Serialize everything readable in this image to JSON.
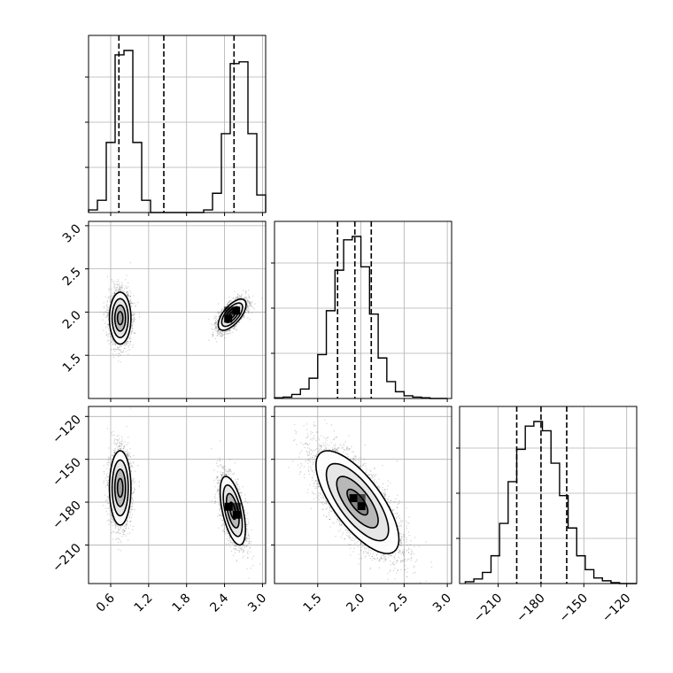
{
  "chart_data": {
    "type": "corner",
    "grid": true,
    "parameters": [
      {
        "range": [
          0.25,
          3.05
        ],
        "ticks": [
          0.6,
          1.2,
          1.8,
          2.4,
          3.0
        ],
        "tick_labels": [
          "0.6",
          "1.2",
          "1.8",
          "2.4",
          "3.0"
        ],
        "quantiles": [
          0.73,
          1.44,
          2.55
        ],
        "histogram": {
          "edges": [
            0.25,
            0.39,
            0.53,
            0.67,
            0.81,
            0.95,
            1.09,
            1.23,
            1.37,
            1.51,
            1.65,
            1.79,
            1.93,
            2.07,
            2.21,
            2.35,
            2.49,
            2.63,
            2.77,
            2.91,
            3.05
          ],
          "counts": [
            3,
            14,
            80,
            180,
            185,
            80,
            14,
            0,
            0,
            0,
            0,
            0,
            0,
            3,
            22,
            90,
            170,
            172,
            90,
            20
          ]
        }
      },
      {
        "range": [
          1.0,
          3.05
        ],
        "ticks": [
          1.5,
          2.0,
          2.5,
          3.0
        ],
        "tick_labels": [
          "1.5",
          "2.0",
          "2.5",
          "3.0"
        ],
        "quantiles": [
          1.73,
          1.93,
          2.12
        ],
        "histogram": {
          "edges": [
            1.0,
            1.1,
            1.2,
            1.3,
            1.4,
            1.5,
            1.6,
            1.7,
            1.8,
            1.9,
            2.0,
            2.1,
            2.2,
            2.3,
            2.4,
            2.5,
            2.6,
            2.7,
            2.8,
            2.9,
            3.0
          ],
          "counts": [
            1,
            2,
            6,
            14,
            30,
            65,
            130,
            190,
            235,
            240,
            195,
            125,
            60,
            25,
            10,
            4,
            2,
            1,
            0,
            0
          ]
        }
      },
      {
        "range": [
          -237,
          -113
        ],
        "ticks": [
          -210,
          -180,
          -150,
          -120
        ],
        "tick_labels": [
          "−210",
          "−180",
          "−150",
          "−120"
        ],
        "quantiles": [
          -197,
          -180,
          -162
        ],
        "histogram": {
          "edges": [
            -233,
            -227,
            -221,
            -215,
            -209,
            -203,
            -197,
            -191,
            -185,
            -179,
            -173,
            -167,
            -161,
            -155,
            -149,
            -143,
            -137,
            -131,
            -125,
            -119,
            -113
          ],
          "counts": [
            2,
            5,
            12,
            30,
            65,
            110,
            145,
            170,
            175,
            165,
            130,
            95,
            60,
            30,
            15,
            6,
            3,
            1,
            0,
            0
          ]
        }
      }
    ],
    "pairs": [
      {
        "x_param": 0,
        "y_param": 1,
        "modes": [
          {
            "center": [
              0.75,
              1.93
            ],
            "sigma": [
              0.085,
              0.15
            ],
            "rho": 0.0,
            "count": 2600,
            "density_peak": 0.45
          },
          {
            "center": [
              2.52,
              1.97
            ],
            "sigma": [
              0.11,
              0.09
            ],
            "rho": 0.65,
            "count": 2600,
            "density_peak": 1.0
          }
        ]
      },
      {
        "x_param": 0,
        "y_param": 2,
        "modes": [
          {
            "center": [
              0.75,
              -170
            ],
            "sigma": [
              0.085,
              13
            ],
            "rho": 0.0,
            "count": 2600,
            "density_peak": 0.5
          },
          {
            "center": [
              2.53,
              -186
            ],
            "sigma": [
              0.1,
              12
            ],
            "rho": -0.55,
            "count": 2600,
            "density_peak": 1.0
          }
        ]
      },
      {
        "x_param": 1,
        "y_param": 2,
        "modes": [
          {
            "center": [
              1.96,
              -180
            ],
            "sigma": [
              0.24,
              18
            ],
            "rho": -0.72,
            "count": 5200,
            "density_peak": 1.0
          }
        ]
      }
    ]
  }
}
